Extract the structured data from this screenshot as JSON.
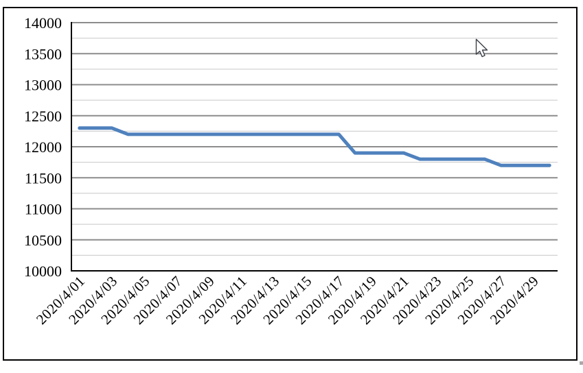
{
  "page": {
    "background_color": "#ffffff",
    "frame_border_color": "#000000"
  },
  "icons": {
    "mouse_cursor": "arrow-pointer",
    "corner_mark": "tiny-gray-artifact"
  },
  "chart_data": {
    "type": "line",
    "title": "",
    "xlabel": "",
    "ylabel": "",
    "legend": "none",
    "x": [
      "2020/4/01",
      "2020/4/02",
      "2020/4/03",
      "2020/4/04",
      "2020/4/05",
      "2020/4/06",
      "2020/4/07",
      "2020/4/08",
      "2020/4/09",
      "2020/4/10",
      "2020/4/11",
      "2020/4/12",
      "2020/4/13",
      "2020/4/14",
      "2020/4/15",
      "2020/4/16",
      "2020/4/17",
      "2020/4/18",
      "2020/4/19",
      "2020/4/20",
      "2020/4/21",
      "2020/4/22",
      "2020/4/23",
      "2020/4/24",
      "2020/4/25",
      "2020/4/26",
      "2020/4/27",
      "2020/4/28",
      "2020/4/29",
      "2020/4/30"
    ],
    "series": [
      {
        "name": "",
        "values": [
          12300,
          12300,
          12300,
          12200,
          12200,
          12200,
          12200,
          12200,
          12200,
          12200,
          12200,
          12200,
          12200,
          12200,
          12200,
          12200,
          12200,
          11900,
          11900,
          11900,
          11900,
          11800,
          11800,
          11800,
          11800,
          11800,
          11700,
          11700,
          11700,
          11700
        ]
      }
    ],
    "x_tick_labels": [
      "2020/4/01",
      "2020/4/03",
      "2020/4/05",
      "2020/4/07",
      "2020/4/09",
      "2020/4/11",
      "2020/4/13",
      "2020/4/15",
      "2020/4/17",
      "2020/4/19",
      "2020/4/21",
      "2020/4/23",
      "2020/4/25",
      "2020/4/27",
      "2020/4/29"
    ],
    "x_tick_every_n_points": 2,
    "y_ticks": [
      14000,
      13500,
      13000,
      12500,
      12000,
      11500,
      11000,
      10500,
      10000
    ],
    "ylim": [
      10000,
      14000
    ],
    "major_unit": 500,
    "minor_unit": 250,
    "grid": {
      "major": true,
      "minor": true
    },
    "colors": {
      "line": "#4f81bd",
      "major_grid": "#8c8c8c",
      "minor_grid": "#d2d2d2",
      "axis": "#000000",
      "labels": "#000000"
    }
  }
}
